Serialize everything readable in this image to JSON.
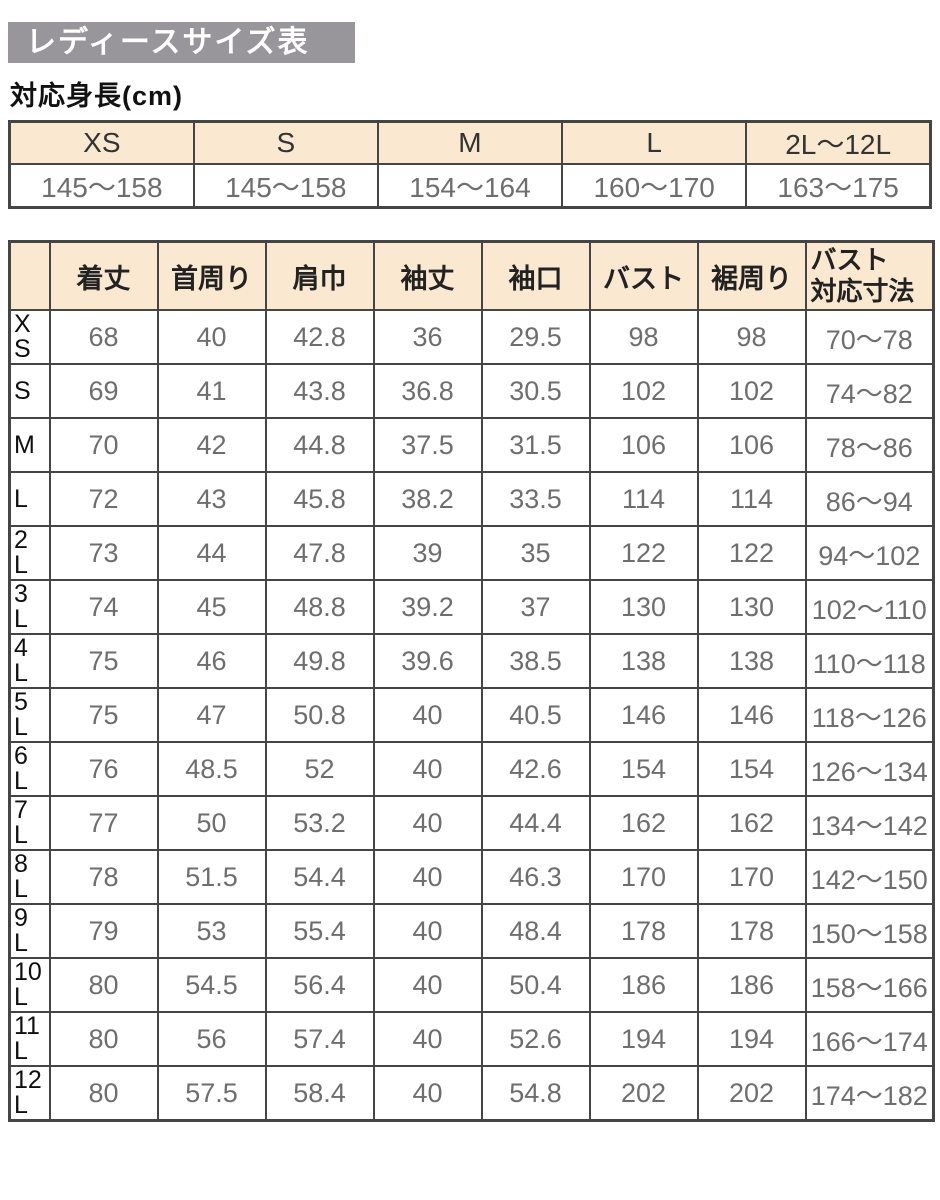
{
  "page": {
    "title": "レディースサイズ表",
    "subtitle": "対応身長(cm)"
  },
  "colors": {
    "banner_bg": "#98959b",
    "header_bg": "#fbe8d1",
    "border": "#454545",
    "value_text": "#6e6e6e",
    "label_text": "#111111"
  },
  "height_table": {
    "columns": [
      "XS",
      "S",
      "M",
      "L",
      "2L〜12L"
    ],
    "values": [
      "145〜158",
      "145〜158",
      "154〜164",
      "160〜170",
      "163〜175"
    ]
  },
  "size_table": {
    "columns": [
      "着丈",
      "首周り",
      "肩巾",
      "袖丈",
      "袖口",
      "バスト",
      "裾周り",
      "バスト\n対応寸法"
    ],
    "rows": [
      {
        "size": "XS",
        "values": [
          "68",
          "40",
          "42.8",
          "36",
          "29.5",
          "98",
          "98",
          "70〜78"
        ]
      },
      {
        "size": "S",
        "values": [
          "69",
          "41",
          "43.8",
          "36.8",
          "30.5",
          "102",
          "102",
          "74〜82"
        ]
      },
      {
        "size": "M",
        "values": [
          "70",
          "42",
          "44.8",
          "37.5",
          "31.5",
          "106",
          "106",
          "78〜86"
        ]
      },
      {
        "size": "L",
        "values": [
          "72",
          "43",
          "45.8",
          "38.2",
          "33.5",
          "114",
          "114",
          "86〜94"
        ]
      },
      {
        "size": "2L",
        "values": [
          "73",
          "44",
          "47.8",
          "39",
          "35",
          "122",
          "122",
          "94〜102"
        ]
      },
      {
        "size": "3L",
        "values": [
          "74",
          "45",
          "48.8",
          "39.2",
          "37",
          "130",
          "130",
          "102〜110"
        ]
      },
      {
        "size": "4L",
        "values": [
          "75",
          "46",
          "49.8",
          "39.6",
          "38.5",
          "138",
          "138",
          "110〜118"
        ]
      },
      {
        "size": "5L",
        "values": [
          "75",
          "47",
          "50.8",
          "40",
          "40.5",
          "146",
          "146",
          "118〜126"
        ]
      },
      {
        "size": "6L",
        "values": [
          "76",
          "48.5",
          "52",
          "40",
          "42.6",
          "154",
          "154",
          "126〜134"
        ]
      },
      {
        "size": "7L",
        "values": [
          "77",
          "50",
          "53.2",
          "40",
          "44.4",
          "162",
          "162",
          "134〜142"
        ]
      },
      {
        "size": "8L",
        "values": [
          "78",
          "51.5",
          "54.4",
          "40",
          "46.3",
          "170",
          "170",
          "142〜150"
        ]
      },
      {
        "size": "9L",
        "values": [
          "79",
          "53",
          "55.4",
          "40",
          "48.4",
          "178",
          "178",
          "150〜158"
        ]
      },
      {
        "size": "10L",
        "values": [
          "80",
          "54.5",
          "56.4",
          "40",
          "50.4",
          "186",
          "186",
          "158〜166"
        ]
      },
      {
        "size": "11L",
        "values": [
          "80",
          "56",
          "57.4",
          "40",
          "52.6",
          "194",
          "194",
          "166〜174"
        ]
      },
      {
        "size": "12L",
        "values": [
          "80",
          "57.5",
          "58.4",
          "40",
          "54.8",
          "202",
          "202",
          "174〜182"
        ]
      }
    ]
  }
}
